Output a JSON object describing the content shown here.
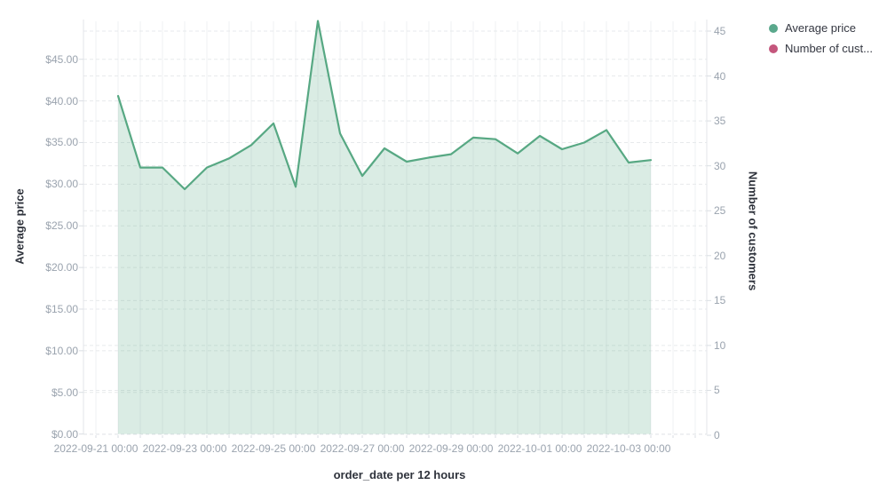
{
  "page": {
    "background": "#ffffff"
  },
  "legend": {
    "items": [
      {
        "label": "Average price",
        "color": "#5aa88c"
      },
      {
        "label": "Number of cust...",
        "color": "#c4567c"
      }
    ]
  },
  "axes": {
    "left": {
      "title": "Average price",
      "tick_labels": [
        "$0.00",
        "$5.00",
        "$10.00",
        "$15.00",
        "$20.00",
        "$25.00",
        "$30.00",
        "$35.00",
        "$40.00",
        "$45.00"
      ],
      "tick_values": [
        0,
        5,
        10,
        15,
        20,
        25,
        30,
        35,
        40,
        45
      ]
    },
    "right": {
      "title": "Number of customers",
      "tick_labels": [
        "0",
        "5",
        "10",
        "15",
        "20",
        "25",
        "30",
        "35",
        "40",
        "45"
      ],
      "tick_values": [
        0,
        5,
        10,
        15,
        20,
        25,
        30,
        35,
        40,
        45
      ]
    },
    "x": {
      "title": "order_date per 12 hours",
      "tick_labels": [
        "2022-09-21 00:00",
        "2022-09-23 00:00",
        "2022-09-25 00:00",
        "2022-09-27 00:00",
        "2022-09-29 00:00",
        "2022-10-01 00:00",
        "2022-10-03 00:00"
      ]
    }
  },
  "chart_data": {
    "type": "area",
    "title": "",
    "xlabel": "order_date per 12 hours",
    "ylabel": "Average price",
    "ylabel_right": "Number of customers",
    "x_interval": "12 hours",
    "x": [
      "2022-09-21 12:00",
      "2022-09-22 00:00",
      "2022-09-22 12:00",
      "2022-09-23 00:00",
      "2022-09-23 12:00",
      "2022-09-24 00:00",
      "2022-09-24 12:00",
      "2022-09-25 00:00",
      "2022-09-25 12:00",
      "2022-09-26 00:00",
      "2022-09-26 12:00",
      "2022-09-27 00:00",
      "2022-09-27 12:00",
      "2022-09-28 00:00",
      "2022-09-28 12:00",
      "2022-09-29 00:00",
      "2022-09-29 12:00",
      "2022-09-30 00:00",
      "2022-09-30 12:00",
      "2022-10-01 00:00",
      "2022-10-01 12:00",
      "2022-10-02 00:00",
      "2022-10-02 12:00",
      "2022-10-03 00:00",
      "2022-10-03 12:00"
    ],
    "series": [
      {
        "name": "Average price",
        "yaxis": "left",
        "color": "#57a883",
        "fill_opacity": 0.22,
        "values": [
          40.6,
          32.0,
          32.0,
          29.4,
          32.0,
          33.1,
          34.7,
          37.3,
          29.7,
          49.6,
          36.1,
          31.0,
          34.3,
          32.7,
          33.2,
          33.6,
          35.6,
          35.4,
          33.7,
          35.8,
          34.2,
          35.0,
          36.5,
          32.6,
          32.9
        ]
      },
      {
        "name": "Number of customers",
        "yaxis": "right",
        "color": "#c4567c",
        "values": []
      }
    ],
    "ylim_left": [
      0,
      49.6
    ],
    "ylim_right": [
      0,
      46
    ],
    "grid": true,
    "legend_position": "top-right"
  },
  "colors": {
    "grid_vertical": "#eff1f3",
    "grid_horizontal": "#e7eaec",
    "axis_line": "#e3e6ea",
    "tick_mark": "#dadee3",
    "tick_text": "#9aa3ae",
    "title_text": "#2f333c"
  }
}
